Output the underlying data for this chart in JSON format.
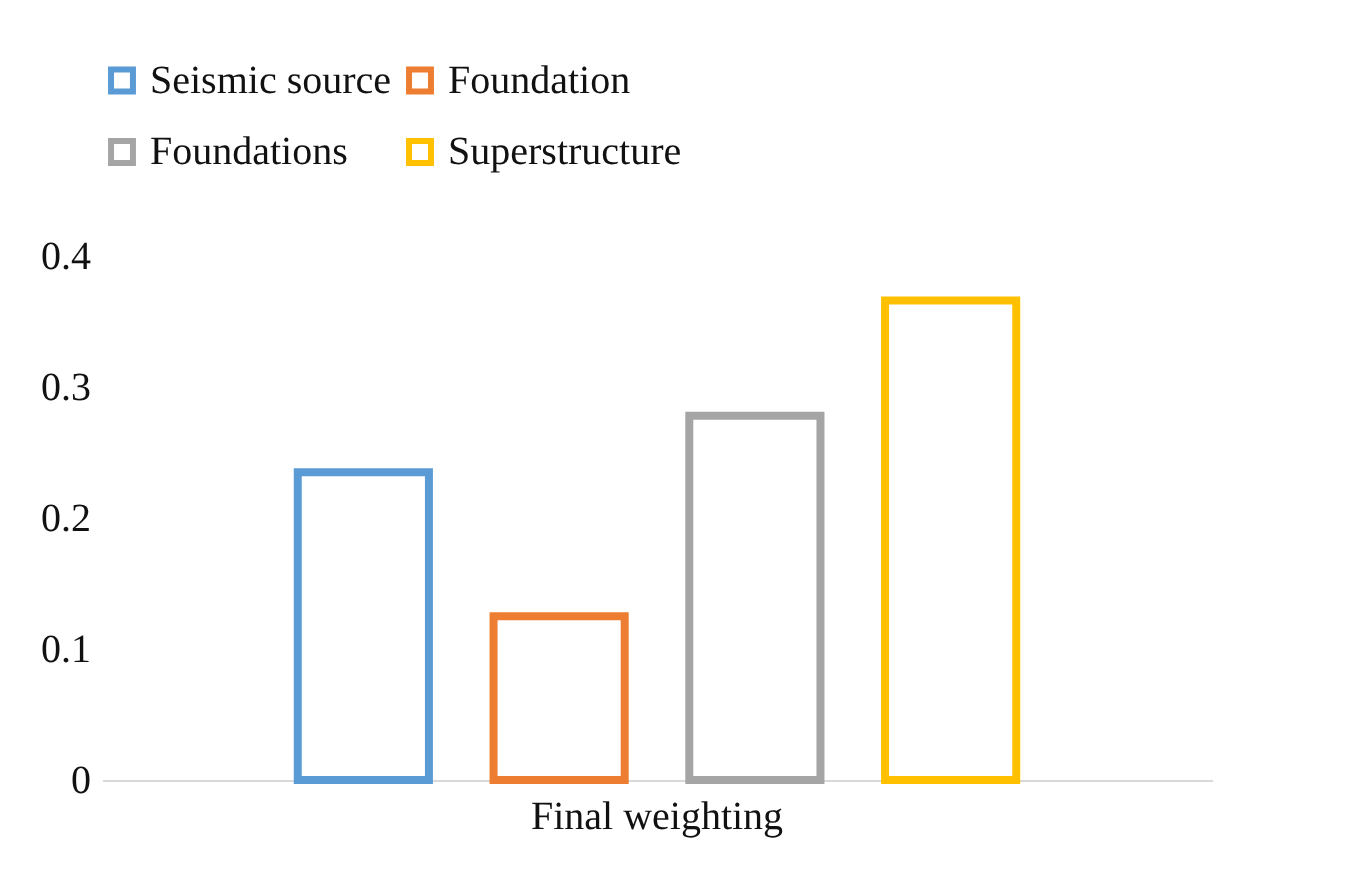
{
  "chart_data": {
    "type": "bar",
    "categories": [
      "Final weighting"
    ],
    "series": [
      {
        "name": "Seismic source",
        "color": "#5b9bd5",
        "values": [
          0.235
        ]
      },
      {
        "name": "Foundation",
        "color": "#ed7d31",
        "values": [
          0.125
        ]
      },
      {
        "name": "Foundations",
        "color": "#a5a5a5",
        "values": [
          0.278
        ]
      },
      {
        "name": "Superstructure",
        "color": "#ffc000",
        "values": [
          0.366
        ]
      }
    ],
    "ylim": [
      0,
      0.4
    ],
    "yticks": [
      0,
      0.1,
      0.2,
      0.3,
      0.4
    ],
    "grid": false,
    "legend": "top"
  }
}
